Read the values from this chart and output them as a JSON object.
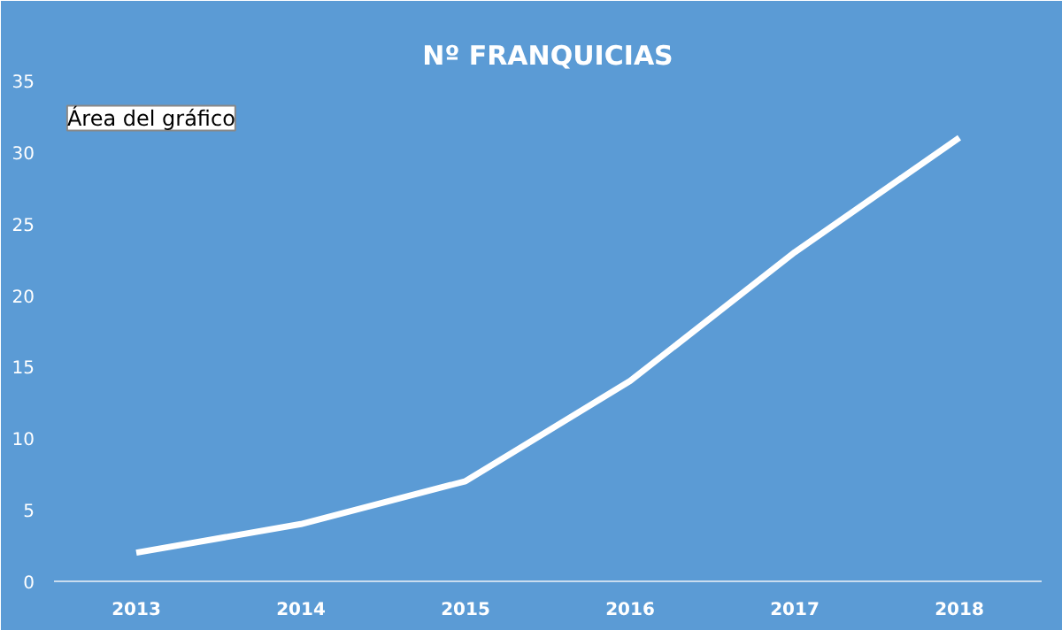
{
  "chart_data": {
    "type": "line",
    "title": "Nº FRANQUICIAS",
    "categories": [
      "2013",
      "2014",
      "2015",
      "2016",
      "2017",
      "2018"
    ],
    "series": [
      {
        "color": "#ffffff",
        "values": [
          2,
          4,
          7,
          14,
          23,
          31
        ]
      }
    ],
    "ylim": [
      0,
      35
    ],
    "yticks": [
      0,
      5,
      10,
      15,
      20,
      25,
      30,
      35
    ],
    "grid": false,
    "marker": "none",
    "line_style": "solid",
    "annotations": [
      "Área del gráfico"
    ]
  }
}
